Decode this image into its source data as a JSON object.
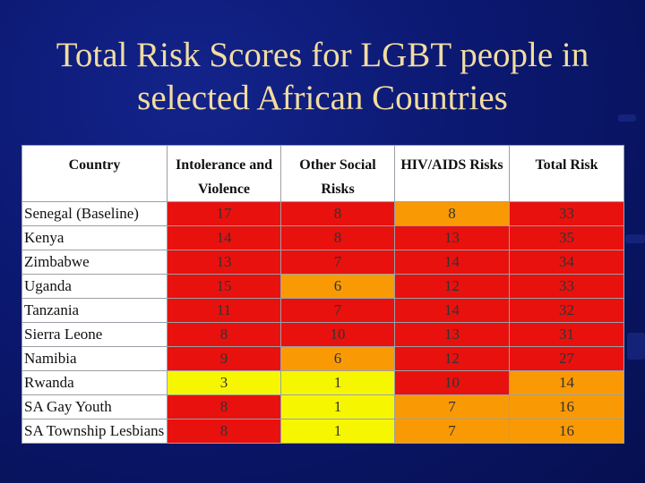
{
  "title": {
    "line1": "Total Risk Scores for LGBT people in",
    "line2": "selected African Countries"
  },
  "colors": {
    "background": "#0b1870",
    "title_text": "#f2dca0",
    "high_risk": "#e8110e",
    "medium_risk": "#f99a05",
    "low_risk": "#f6f600"
  },
  "table": {
    "headers": [
      "Country",
      "Intolerance and Violence",
      "Other Social Risks",
      "HIV/AIDS Risks",
      "Total Risk"
    ],
    "rows": [
      {
        "country": "Senegal (Baseline)",
        "values": [
          "17",
          "8",
          "8",
          "33"
        ],
        "levels": [
          "red",
          "red",
          "orange",
          "red"
        ]
      },
      {
        "country": "Kenya",
        "values": [
          "14",
          "8",
          "13",
          "35"
        ],
        "levels": [
          "red",
          "red",
          "red",
          "red"
        ]
      },
      {
        "country": "Zimbabwe",
        "values": [
          "13",
          "7",
          "14",
          "34"
        ],
        "levels": [
          "red",
          "red",
          "red",
          "red"
        ]
      },
      {
        "country": "Uganda",
        "values": [
          "15",
          "6",
          "12",
          "33"
        ],
        "levels": [
          "red",
          "orange",
          "red",
          "red"
        ]
      },
      {
        "country": "Tanzania",
        "values": [
          "11",
          "7",
          "14",
          "32"
        ],
        "levels": [
          "red",
          "red",
          "red",
          "red"
        ]
      },
      {
        "country": "Sierra Leone",
        "values": [
          "8",
          "10",
          "13",
          "31"
        ],
        "levels": [
          "red",
          "red",
          "red",
          "red"
        ]
      },
      {
        "country": "Namibia",
        "values": [
          "9",
          "6",
          "12",
          "27"
        ],
        "levels": [
          "red",
          "orange",
          "red",
          "red"
        ]
      },
      {
        "country": "Rwanda",
        "values": [
          "3",
          "1",
          "10",
          "14"
        ],
        "levels": [
          "yellow",
          "yellow",
          "red",
          "orange"
        ]
      },
      {
        "country": "SA Gay Youth",
        "values": [
          "8",
          "1",
          "7",
          "16"
        ],
        "levels": [
          "red",
          "yellow",
          "orange",
          "orange"
        ]
      },
      {
        "country": "SA Township Lesbians",
        "values": [
          "8",
          "1",
          "7",
          "16"
        ],
        "levels": [
          "red",
          "yellow",
          "orange",
          "orange"
        ]
      }
    ]
  }
}
